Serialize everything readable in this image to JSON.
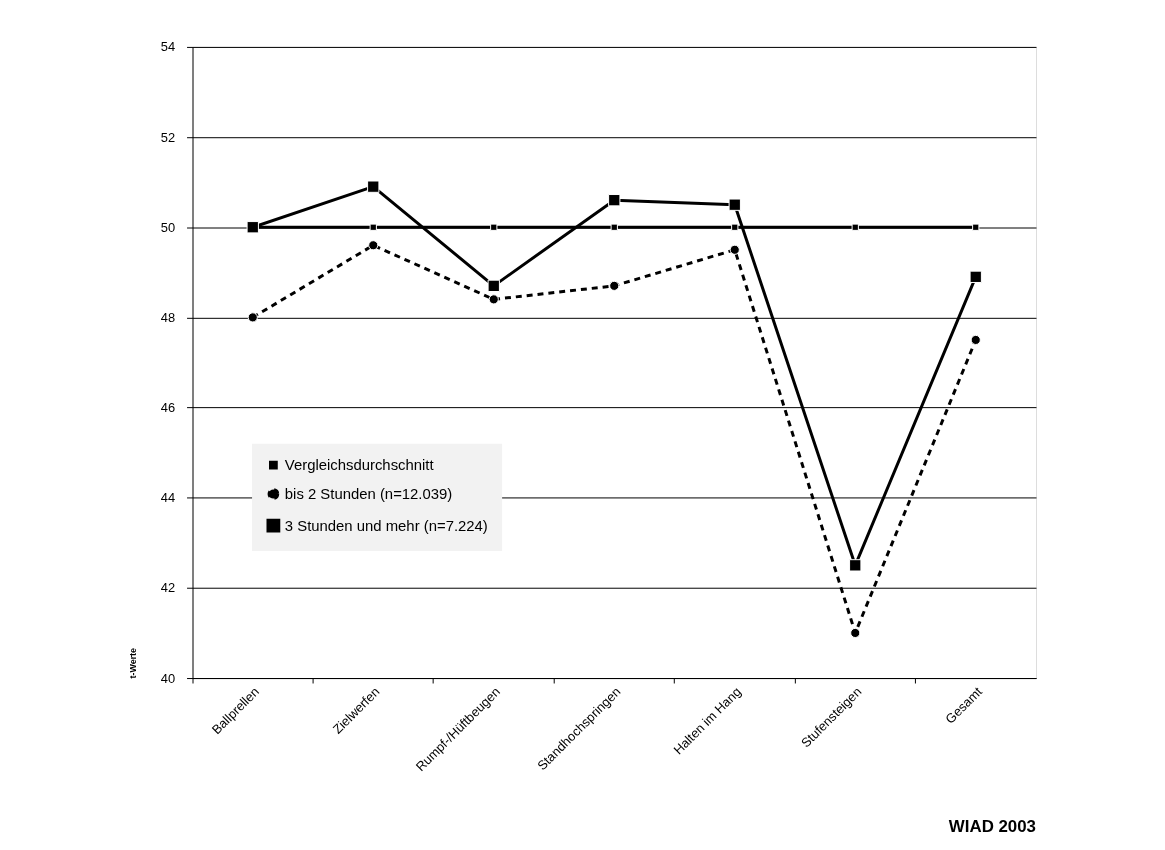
{
  "chart_data": {
    "type": "line",
    "ylabel": "t-Werte",
    "categories": [
      "Ballprellen",
      "Zielwerfen",
      "Rumpf-/Hüftbeugen",
      "Standhochspringen",
      "Halten im Hang",
      "Stufensteigen",
      "Gesamt"
    ],
    "series": [
      {
        "name": "Vergleichsdurchschnitt",
        "color": "#000000",
        "marker": "square",
        "line_style": "solid",
        "values": [
          50,
          50,
          50,
          50,
          50,
          50,
          50
        ]
      },
      {
        "name": "bis 2 Stunden (n=12.039)",
        "color": "#000000",
        "marker": "circle",
        "line_style": "dashed",
        "values": [
          48.0,
          49.6,
          48.4,
          48.7,
          49.5,
          41.0,
          47.5
        ]
      },
      {
        "name": "3 Stunden und mehr (n=7.224)",
        "color": "#000000",
        "marker": "square",
        "line_style": "solid",
        "values": [
          50.0,
          50.9,
          48.7,
          50.6,
          50.5,
          42.5,
          48.9
        ]
      }
    ],
    "ylim": [
      40,
      54
    ],
    "yticks": [
      40,
      42,
      44,
      46,
      48,
      50,
      52,
      54
    ],
    "grid": true,
    "legend": "left",
    "annotations": [
      "WIAD 2003"
    ]
  }
}
